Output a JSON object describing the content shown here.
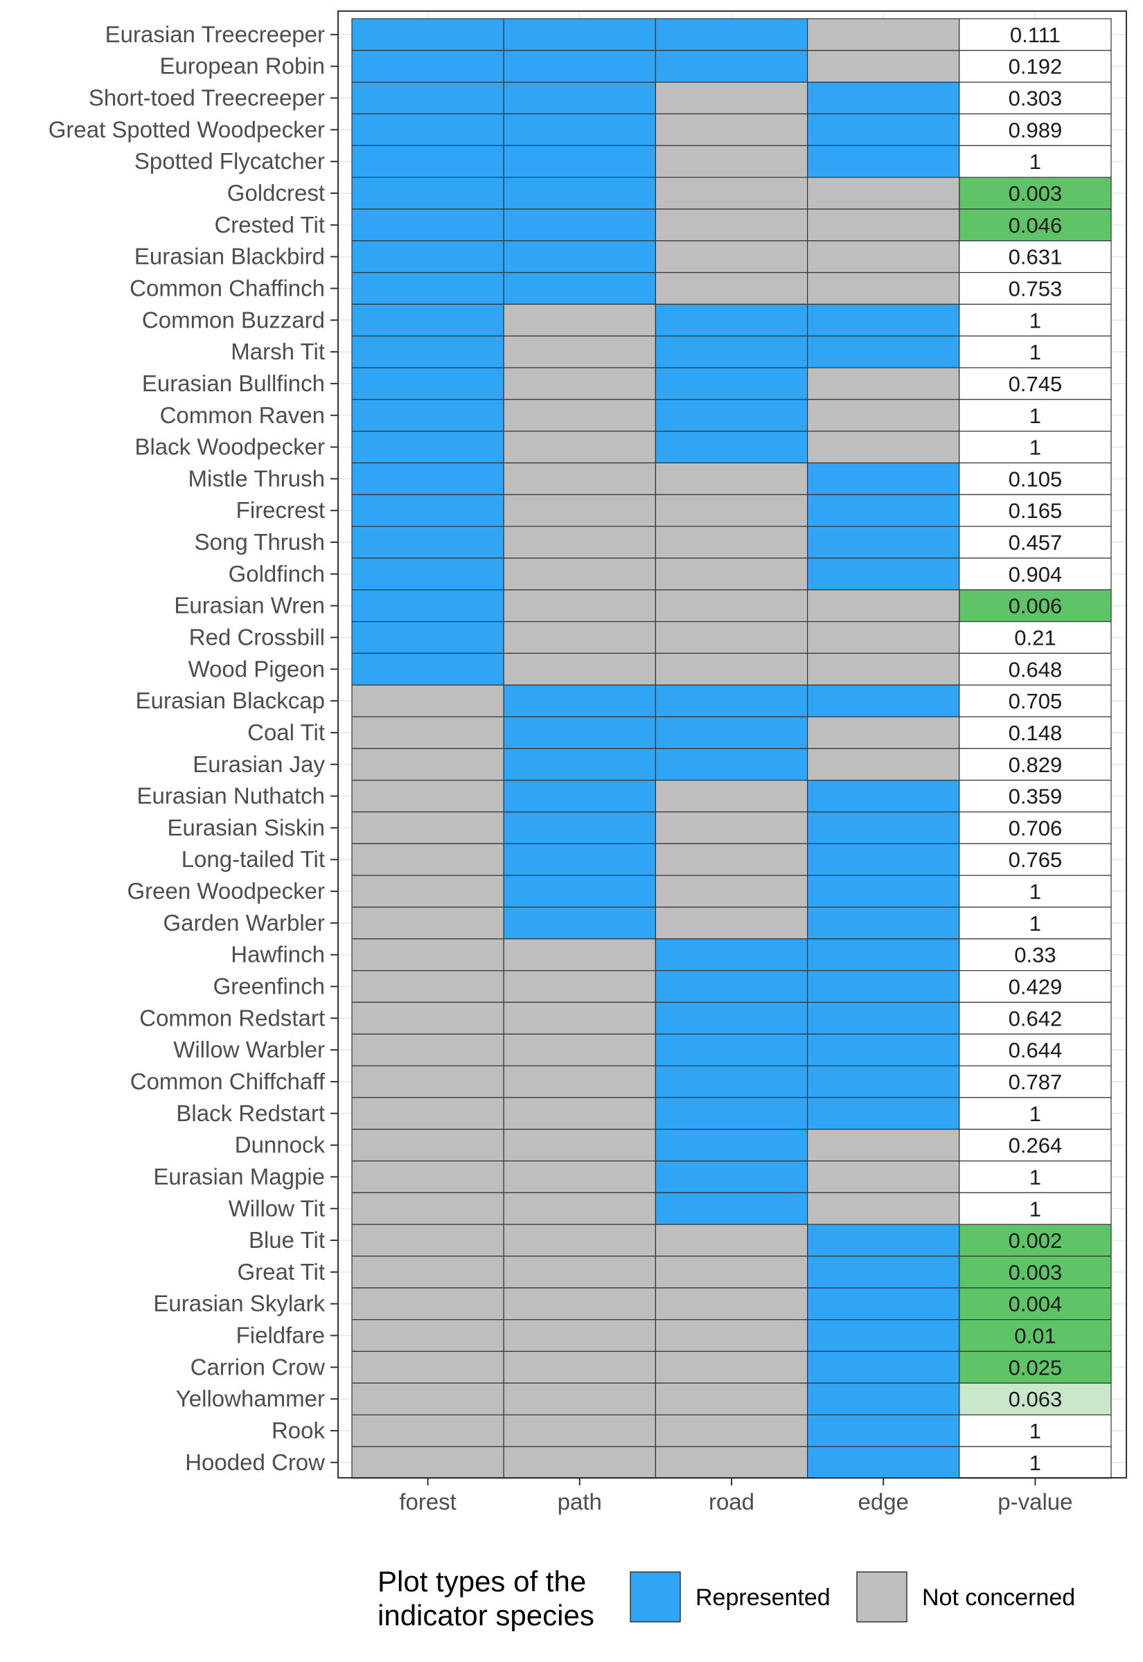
{
  "chart_data": {
    "type": "table",
    "columns": [
      "forest",
      "path",
      "road",
      "edge",
      "p-value"
    ],
    "colors": {
      "represented": "#31a5f5",
      "not_concerned": "#bebebe",
      "pvalue_significant": "#5ec467",
      "pvalue_marginal": "#c9e8cb",
      "pvalue_none": "#ffffff",
      "grid": "#ebebeb",
      "border": "#333333"
    },
    "legend": {
      "title_line1": "Plot types of the",
      "title_line2": "indicator species",
      "position": "bottom",
      "items": [
        {
          "key": "represented",
          "label": "Represented"
        },
        {
          "key": "not_concerned",
          "label": "Not concerned"
        }
      ]
    },
    "rows": [
      {
        "species": "Eurasian Treecreeper",
        "forest": 1,
        "path": 1,
        "road": 1,
        "edge": 0,
        "p_value": "0.111"
      },
      {
        "species": "European Robin",
        "forest": 1,
        "path": 1,
        "road": 1,
        "edge": 0,
        "p_value": "0.192"
      },
      {
        "species": "Short-toed Treecreeper",
        "forest": 1,
        "path": 1,
        "road": 0,
        "edge": 1,
        "p_value": "0.303"
      },
      {
        "species": "Great Spotted Woodpecker",
        "forest": 1,
        "path": 1,
        "road": 0,
        "edge": 1,
        "p_value": "0.989"
      },
      {
        "species": "Spotted Flycatcher",
        "forest": 1,
        "path": 1,
        "road": 0,
        "edge": 1,
        "p_value": "1"
      },
      {
        "species": "Goldcrest",
        "forest": 1,
        "path": 1,
        "road": 0,
        "edge": 0,
        "p_value": "0.003"
      },
      {
        "species": "Crested Tit",
        "forest": 1,
        "path": 1,
        "road": 0,
        "edge": 0,
        "p_value": "0.046"
      },
      {
        "species": "Eurasian Blackbird",
        "forest": 1,
        "path": 1,
        "road": 0,
        "edge": 0,
        "p_value": "0.631"
      },
      {
        "species": "Common Chaffinch",
        "forest": 1,
        "path": 1,
        "road": 0,
        "edge": 0,
        "p_value": "0.753"
      },
      {
        "species": "Common Buzzard",
        "forest": 1,
        "path": 0,
        "road": 1,
        "edge": 1,
        "p_value": "1"
      },
      {
        "species": "Marsh Tit",
        "forest": 1,
        "path": 0,
        "road": 1,
        "edge": 1,
        "p_value": "1"
      },
      {
        "species": "Eurasian Bullfinch",
        "forest": 1,
        "path": 0,
        "road": 1,
        "edge": 0,
        "p_value": "0.745"
      },
      {
        "species": "Common Raven",
        "forest": 1,
        "path": 0,
        "road": 1,
        "edge": 0,
        "p_value": "1"
      },
      {
        "species": "Black Woodpecker",
        "forest": 1,
        "path": 0,
        "road": 1,
        "edge": 0,
        "p_value": "1"
      },
      {
        "species": "Mistle Thrush",
        "forest": 1,
        "path": 0,
        "road": 0,
        "edge": 1,
        "p_value": "0.105"
      },
      {
        "species": "Firecrest",
        "forest": 1,
        "path": 0,
        "road": 0,
        "edge": 1,
        "p_value": "0.165"
      },
      {
        "species": "Song Thrush",
        "forest": 1,
        "path": 0,
        "road": 0,
        "edge": 1,
        "p_value": "0.457"
      },
      {
        "species": "Goldfinch",
        "forest": 1,
        "path": 0,
        "road": 0,
        "edge": 1,
        "p_value": "0.904"
      },
      {
        "species": "Eurasian Wren",
        "forest": 1,
        "path": 0,
        "road": 0,
        "edge": 0,
        "p_value": "0.006"
      },
      {
        "species": "Red Crossbill",
        "forest": 1,
        "path": 0,
        "road": 0,
        "edge": 0,
        "p_value": "0.21"
      },
      {
        "species": "Wood Pigeon",
        "forest": 1,
        "path": 0,
        "road": 0,
        "edge": 0,
        "p_value": "0.648"
      },
      {
        "species": "Eurasian Blackcap",
        "forest": 0,
        "path": 1,
        "road": 1,
        "edge": 1,
        "p_value": "0.705"
      },
      {
        "species": "Coal Tit",
        "forest": 0,
        "path": 1,
        "road": 1,
        "edge": 0,
        "p_value": "0.148"
      },
      {
        "species": "Eurasian Jay",
        "forest": 0,
        "path": 1,
        "road": 1,
        "edge": 0,
        "p_value": "0.829"
      },
      {
        "species": "Eurasian Nuthatch",
        "forest": 0,
        "path": 1,
        "road": 0,
        "edge": 1,
        "p_value": "0.359"
      },
      {
        "species": "Eurasian Siskin",
        "forest": 0,
        "path": 1,
        "road": 0,
        "edge": 1,
        "p_value": "0.706"
      },
      {
        "species": "Long-tailed Tit",
        "forest": 0,
        "path": 1,
        "road": 0,
        "edge": 1,
        "p_value": "0.765"
      },
      {
        "species": "Green Woodpecker",
        "forest": 0,
        "path": 1,
        "road": 0,
        "edge": 1,
        "p_value": "1"
      },
      {
        "species": "Garden Warbler",
        "forest": 0,
        "path": 1,
        "road": 0,
        "edge": 1,
        "p_value": "1"
      },
      {
        "species": "Hawfinch",
        "forest": 0,
        "path": 0,
        "road": 1,
        "edge": 1,
        "p_value": "0.33"
      },
      {
        "species": "Greenfinch",
        "forest": 0,
        "path": 0,
        "road": 1,
        "edge": 1,
        "p_value": "0.429"
      },
      {
        "species": "Common Redstart",
        "forest": 0,
        "path": 0,
        "road": 1,
        "edge": 1,
        "p_value": "0.642"
      },
      {
        "species": "Willow Warbler",
        "forest": 0,
        "path": 0,
        "road": 1,
        "edge": 1,
        "p_value": "0.644"
      },
      {
        "species": "Common Chiffchaff",
        "forest": 0,
        "path": 0,
        "road": 1,
        "edge": 1,
        "p_value": "0.787"
      },
      {
        "species": "Black Redstart",
        "forest": 0,
        "path": 0,
        "road": 1,
        "edge": 1,
        "p_value": "1"
      },
      {
        "species": "Dunnock",
        "forest": 0,
        "path": 0,
        "road": 1,
        "edge": 0,
        "p_value": "0.264"
      },
      {
        "species": "Eurasian Magpie",
        "forest": 0,
        "path": 0,
        "road": 1,
        "edge": 0,
        "p_value": "1"
      },
      {
        "species": "Willow Tit",
        "forest": 0,
        "path": 0,
        "road": 1,
        "edge": 0,
        "p_value": "1"
      },
      {
        "species": "Blue Tit",
        "forest": 0,
        "path": 0,
        "road": 0,
        "edge": 1,
        "p_value": "0.002"
      },
      {
        "species": "Great Tit",
        "forest": 0,
        "path": 0,
        "road": 0,
        "edge": 1,
        "p_value": "0.003"
      },
      {
        "species": "Eurasian Skylark",
        "forest": 0,
        "path": 0,
        "road": 0,
        "edge": 1,
        "p_value": "0.004"
      },
      {
        "species": "Fieldfare",
        "forest": 0,
        "path": 0,
        "road": 0,
        "edge": 1,
        "p_value": "0.01"
      },
      {
        "species": "Carrion Crow",
        "forest": 0,
        "path": 0,
        "road": 0,
        "edge": 1,
        "p_value": "0.025"
      },
      {
        "species": "Yellowhammer",
        "forest": 0,
        "path": 0,
        "road": 0,
        "edge": 1,
        "p_value": "0.063"
      },
      {
        "species": "Rook",
        "forest": 0,
        "path": 0,
        "road": 0,
        "edge": 1,
        "p_value": "1"
      },
      {
        "species": "Hooded Crow",
        "forest": 0,
        "path": 0,
        "road": 0,
        "edge": 1,
        "p_value": "1"
      }
    ]
  }
}
